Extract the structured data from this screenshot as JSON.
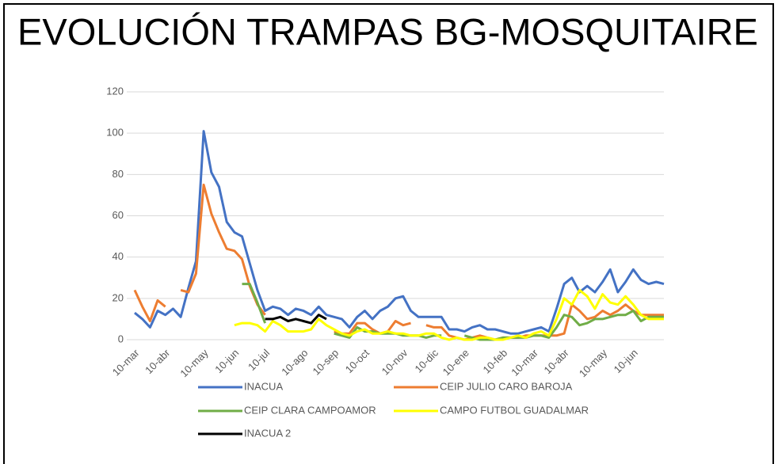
{
  "chart_data": {
    "type": "line",
    "title": "EVOLUCIÓN TRAMPAS BG-MOSQUITAIRE",
    "categories": [
      "10-mar",
      null,
      null,
      null,
      "10-abr",
      null,
      null,
      null,
      null,
      "10-may",
      null,
      null,
      null,
      "10-jun",
      null,
      null,
      null,
      "10-jul",
      null,
      null,
      null,
      null,
      "10-ago",
      null,
      null,
      null,
      "10-sep",
      null,
      null,
      null,
      "10-oct",
      null,
      null,
      null,
      null,
      "10-nov",
      null,
      null,
      null,
      "10-dic",
      null,
      null,
      null,
      "10-ene",
      null,
      null,
      null,
      null,
      "10-feb",
      null,
      null,
      null,
      "10-mar",
      null,
      null,
      null,
      "10-abr",
      null,
      null,
      null,
      null,
      "10-may",
      null,
      null,
      null,
      "10-jun",
      null,
      null,
      null,
      null
    ],
    "series": [
      {
        "name": "INACUA",
        "color": "#4472c4",
        "values": [
          13,
          10,
          6,
          14,
          12,
          15,
          11,
          25,
          38,
          101,
          81,
          74,
          57,
          52,
          50,
          37,
          24,
          14,
          16,
          15,
          12,
          15,
          14,
          12,
          16,
          12,
          11,
          10,
          6,
          11,
          14,
          10,
          14,
          16,
          20,
          21,
          14,
          11,
          11,
          11,
          11,
          5,
          5,
          4,
          6,
          7,
          5,
          5,
          4,
          3,
          3,
          4,
          5,
          6,
          4,
          15,
          27,
          30,
          23,
          26,
          23,
          28,
          34,
          23,
          28,
          34,
          29,
          27,
          28,
          27
        ]
      },
      {
        "name": "CEIP JULIO CARO BAROJA",
        "color": "#ed7d31",
        "values": [
          24,
          16,
          9,
          19,
          16,
          null,
          24,
          23,
          32,
          75,
          61,
          52,
          44,
          43,
          39,
          26,
          17,
          12,
          null,
          null,
          null,
          null,
          null,
          null,
          null,
          null,
          4,
          3,
          3,
          8,
          8,
          5,
          3,
          4,
          9,
          7,
          8,
          null,
          7,
          6,
          6,
          2,
          1,
          0,
          1,
          2,
          1,
          0,
          1,
          1,
          1,
          2,
          2,
          2,
          2,
          2,
          3,
          17,
          14,
          10,
          11,
          14,
          12,
          14,
          17,
          14,
          12,
          12,
          12,
          12
        ]
      },
      {
        "name": "CEIP CLARA CAMPOAMOR",
        "color": "#70ad47",
        "values": [
          null,
          null,
          null,
          null,
          null,
          null,
          null,
          null,
          null,
          null,
          null,
          null,
          null,
          null,
          27,
          27,
          18,
          8,
          null,
          null,
          null,
          null,
          null,
          null,
          null,
          null,
          3,
          2,
          1,
          6,
          4,
          4,
          3,
          3,
          3,
          2,
          2,
          2,
          1,
          2,
          2,
          null,
          null,
          2,
          1,
          0,
          0,
          0,
          1,
          1,
          1,
          1,
          2,
          2,
          1,
          6,
          12,
          11,
          7,
          8,
          10,
          10,
          11,
          12,
          12,
          14,
          9,
          11,
          11,
          11
        ]
      },
      {
        "name": "CAMPO FUTBOL GUADALMAR",
        "color": "#ffff00",
        "values": [
          null,
          null,
          null,
          null,
          null,
          null,
          null,
          null,
          null,
          null,
          null,
          null,
          null,
          7,
          8,
          8,
          7,
          4,
          9,
          7,
          4,
          4,
          4,
          5,
          10,
          7,
          5,
          3,
          2,
          4,
          5,
          3,
          3,
          4,
          3,
          3,
          2,
          2,
          3,
          3,
          1,
          0,
          1,
          0,
          0,
          1,
          1,
          0,
          0,
          1,
          2,
          1,
          3,
          4,
          2,
          10,
          20,
          17,
          24,
          21,
          15,
          22,
          18,
          17,
          21,
          17,
          12,
          10,
          10,
          10
        ]
      },
      {
        "name": "INACUA 2",
        "color": "#000000",
        "values": [
          null,
          null,
          null,
          null,
          null,
          null,
          null,
          null,
          null,
          null,
          null,
          null,
          null,
          null,
          null,
          null,
          null,
          10,
          10,
          11,
          9,
          10,
          9,
          8,
          12,
          10,
          null,
          null,
          null,
          null,
          null,
          null,
          null,
          null,
          null,
          null,
          null,
          null,
          null,
          null,
          null,
          null,
          null,
          null,
          null,
          null,
          null,
          null,
          null,
          null,
          null,
          null,
          null,
          null,
          null,
          null,
          null,
          null,
          null,
          null,
          null,
          null,
          null,
          null,
          null,
          null,
          null,
          null,
          null,
          null
        ]
      }
    ],
    "ylim": [
      0,
      120
    ],
    "yticks": [
      0,
      20,
      40,
      60,
      80,
      100,
      120
    ],
    "grid": true,
    "legend": "bottom"
  }
}
